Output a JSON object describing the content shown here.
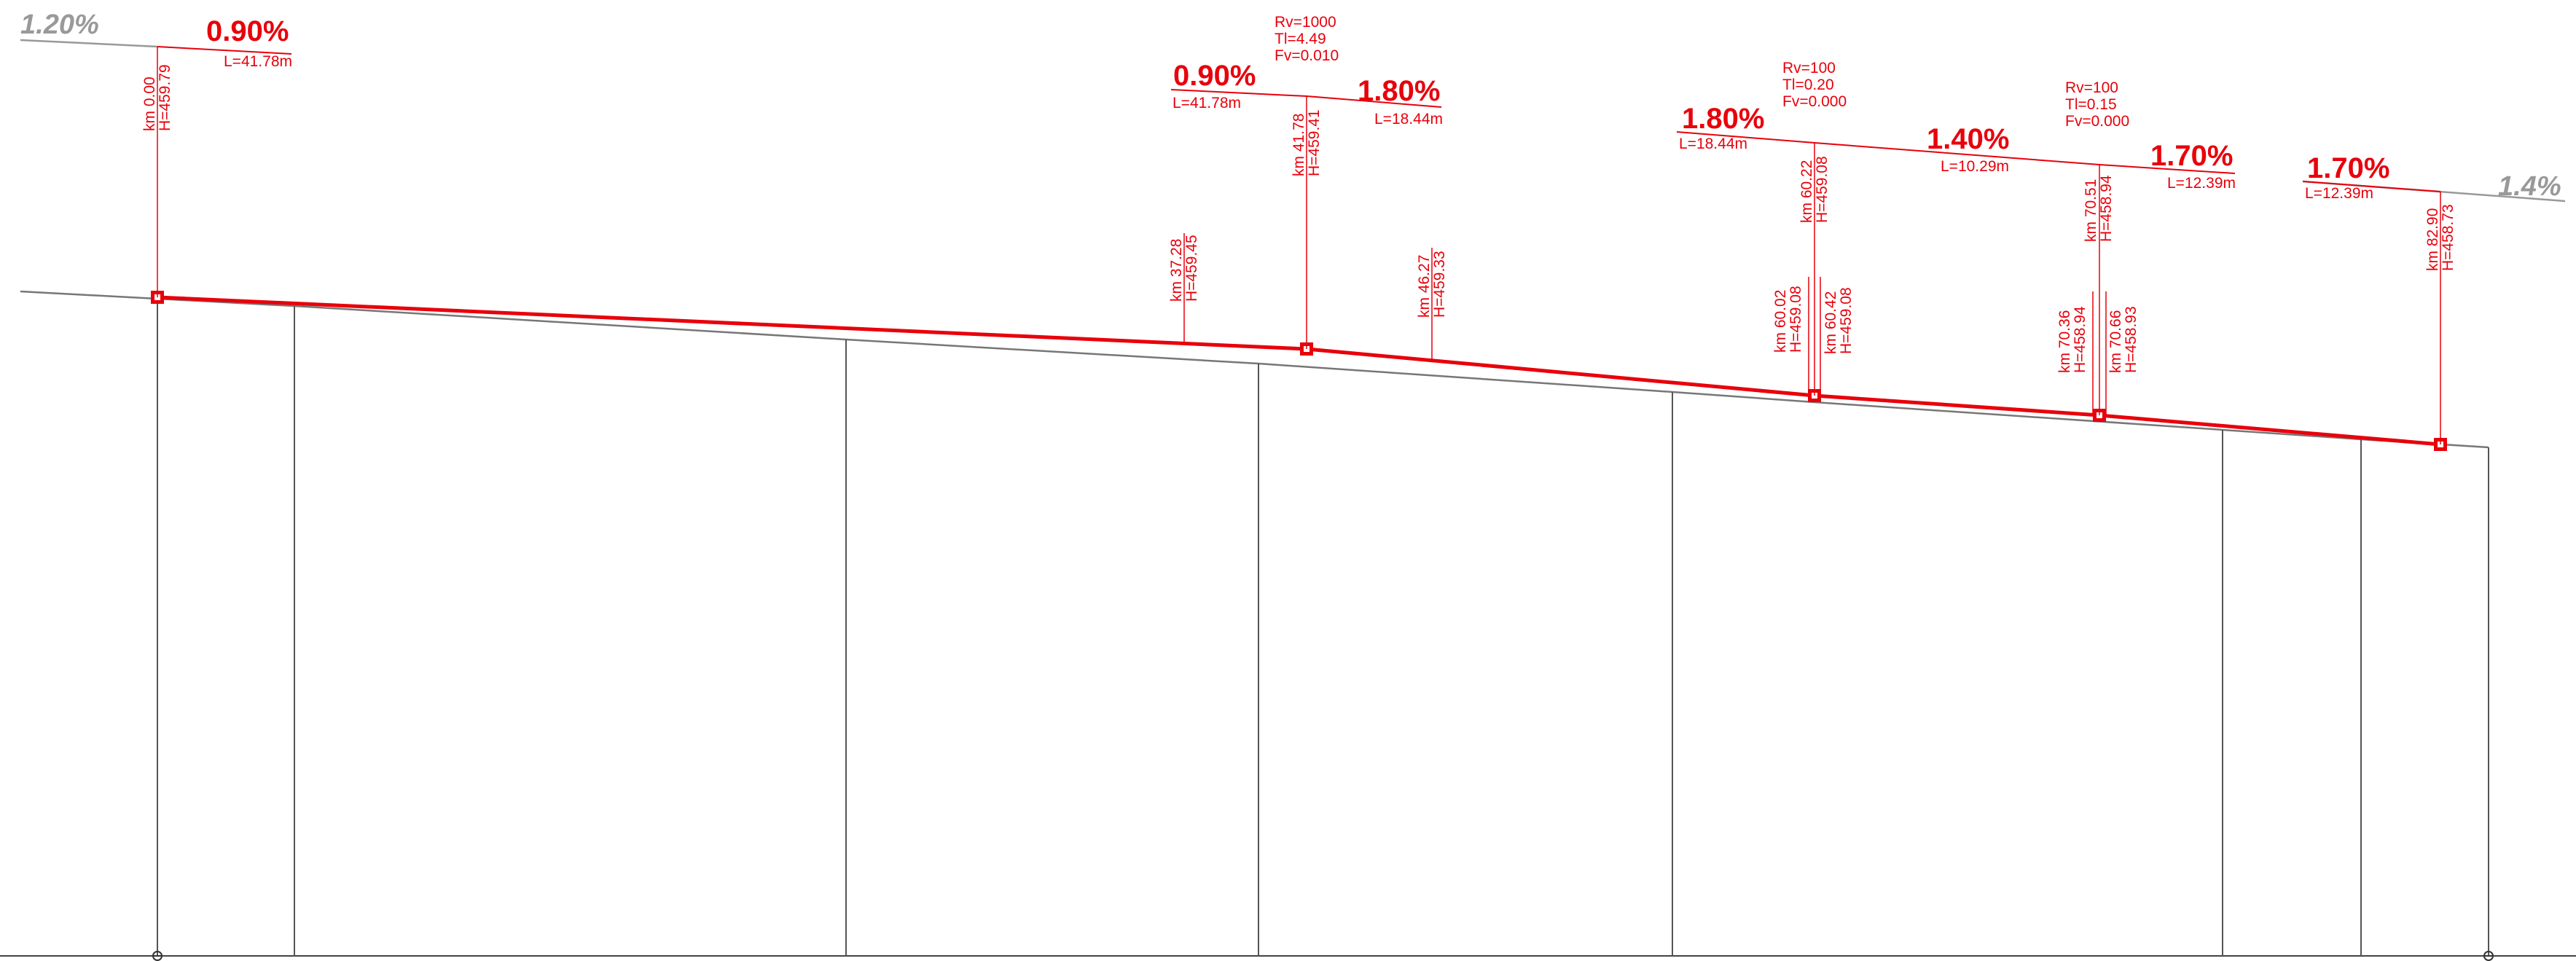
{
  "colors": {
    "design": "#e8000b",
    "ground": "#666666",
    "ghost": "#999999",
    "frame": "#333333"
  },
  "edge_grades": {
    "left": "1.20%",
    "right": "1.4%"
  },
  "grades": [
    {
      "grade": "0.90%",
      "length": "L=41.78m"
    },
    {
      "grade": "0.90%",
      "length": "L=41.78m"
    },
    {
      "grade": "1.80%",
      "length": "L=18.44m"
    },
    {
      "grade": "1.80%",
      "length": "L=18.44m"
    },
    {
      "grade": "1.40%",
      "length": "L=10.29m"
    },
    {
      "grade": "1.70%",
      "length": "L=12.39m"
    },
    {
      "grade": "1.70%",
      "length": "L=12.39m"
    }
  ],
  "curves": [
    {
      "rv": "Rv=1000",
      "tl": "Tl=4.49",
      "fv": "Fv=0.010"
    },
    {
      "rv": "Rv=100",
      "tl": "Tl=0.20",
      "fv": "Fv=0.000"
    },
    {
      "rv": "Rv=100",
      "tl": "Tl=0.15",
      "fv": "Fv=0.000"
    }
  ],
  "stations": [
    {
      "km": "km 0.00",
      "h": "H=459.79"
    },
    {
      "km": "km 37.28",
      "h": "H=459.45"
    },
    {
      "km": "km 41.78",
      "h": "H=459.41"
    },
    {
      "km": "km 46.27",
      "h": "H=459.33"
    },
    {
      "km": "km 60.02",
      "h": "H=459.08"
    },
    {
      "km": "km 60.22",
      "h": "H=459.08"
    },
    {
      "km": "km 60.42",
      "h": "H=459.08"
    },
    {
      "km": "km 70.36",
      "h": "H=458.94"
    },
    {
      "km": "km 70.51",
      "h": "H=458.94"
    },
    {
      "km": "km 70.66",
      "h": "H=458.93"
    },
    {
      "km": "km 82.90",
      "h": "H=458.73"
    }
  ]
}
